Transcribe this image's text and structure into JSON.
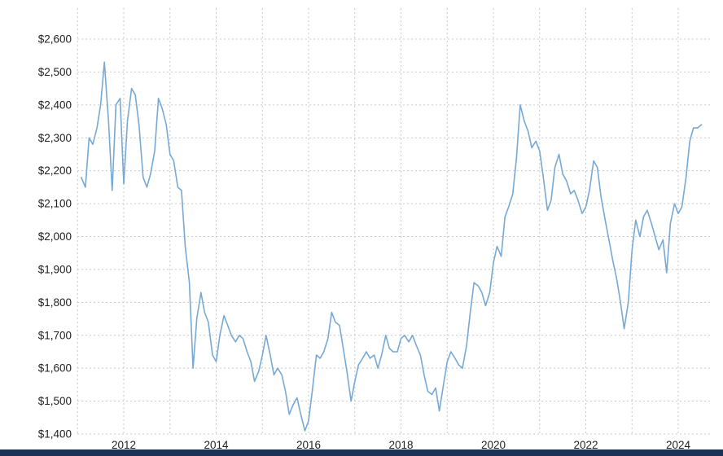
{
  "page": {
    "title": ""
  },
  "colors": {
    "line": "#77a9d4",
    "grid": "#c9c9c9",
    "axis_text": "#1f1f1f",
    "background": "#ffffff",
    "footer_bar": "#1c3254"
  },
  "chart_data": {
    "type": "line",
    "title": "",
    "xlabel": "",
    "ylabel": "",
    "legend": "none",
    "grid": true,
    "grid_style": "dashed",
    "xlim": [
      2011,
      2024.7
    ],
    "ylim": [
      1400,
      2650
    ],
    "y_ticks": [
      {
        "value": 2600,
        "label": "$2,600"
      },
      {
        "value": 2500,
        "label": "$2,500"
      },
      {
        "value": 2400,
        "label": "$2,400"
      },
      {
        "value": 2300,
        "label": "$2,300"
      },
      {
        "value": 2200,
        "label": "$2,200"
      },
      {
        "value": 2100,
        "label": "$2,100"
      },
      {
        "value": 2000,
        "label": "$2,000"
      },
      {
        "value": 1900,
        "label": "$1,900"
      },
      {
        "value": 1800,
        "label": "$1,800"
      },
      {
        "value": 1700,
        "label": "$1,700"
      },
      {
        "value": 1600,
        "label": "$1,600"
      },
      {
        "value": 1500,
        "label": "$1,500"
      },
      {
        "value": 1400,
        "label": "$1,400"
      }
    ],
    "x_ticks": [
      {
        "value": 2012,
        "label": "2012"
      },
      {
        "value": 2014,
        "label": "2014"
      },
      {
        "value": 2016,
        "label": "2016"
      },
      {
        "value": 2018,
        "label": "2018"
      },
      {
        "value": 2020,
        "label": "2020"
      },
      {
        "value": 2022,
        "label": "2022"
      },
      {
        "value": 2024,
        "label": "2024"
      }
    ],
    "x_gridlines": [
      2011,
      2012,
      2013,
      2014,
      2015,
      2016,
      2017,
      2018,
      2019,
      2020,
      2021,
      2022,
      2023,
      2024
    ],
    "points": [
      [
        2011.08,
        2180
      ],
      [
        2011.17,
        2150
      ],
      [
        2011.25,
        2300
      ],
      [
        2011.33,
        2280
      ],
      [
        2011.42,
        2330
      ],
      [
        2011.5,
        2400
      ],
      [
        2011.58,
        2530
      ],
      [
        2011.67,
        2350
      ],
      [
        2011.75,
        2140
      ],
      [
        2011.83,
        2400
      ],
      [
        2011.92,
        2420
      ],
      [
        2012.0,
        2160
      ],
      [
        2012.08,
        2350
      ],
      [
        2012.17,
        2450
      ],
      [
        2012.25,
        2430
      ],
      [
        2012.33,
        2340
      ],
      [
        2012.42,
        2180
      ],
      [
        2012.5,
        2150
      ],
      [
        2012.58,
        2190
      ],
      [
        2012.67,
        2260
      ],
      [
        2012.75,
        2420
      ],
      [
        2012.83,
        2390
      ],
      [
        2012.92,
        2340
      ],
      [
        2013.0,
        2250
      ],
      [
        2013.08,
        2230
      ],
      [
        2013.17,
        2150
      ],
      [
        2013.25,
        2140
      ],
      [
        2013.33,
        1970
      ],
      [
        2013.42,
        1860
      ],
      [
        2013.5,
        1600
      ],
      [
        2013.58,
        1750
      ],
      [
        2013.67,
        1830
      ],
      [
        2013.75,
        1770
      ],
      [
        2013.83,
        1740
      ],
      [
        2013.92,
        1640
      ],
      [
        2014.0,
        1620
      ],
      [
        2014.08,
        1700
      ],
      [
        2014.17,
        1760
      ],
      [
        2014.25,
        1730
      ],
      [
        2014.33,
        1700
      ],
      [
        2014.42,
        1680
      ],
      [
        2014.5,
        1700
      ],
      [
        2014.58,
        1690
      ],
      [
        2014.67,
        1650
      ],
      [
        2014.75,
        1620
      ],
      [
        2014.83,
        1560
      ],
      [
        2014.92,
        1590
      ],
      [
        2015.0,
        1640
      ],
      [
        2015.08,
        1700
      ],
      [
        2015.17,
        1640
      ],
      [
        2015.25,
        1580
      ],
      [
        2015.33,
        1600
      ],
      [
        2015.42,
        1580
      ],
      [
        2015.5,
        1530
      ],
      [
        2015.58,
        1460
      ],
      [
        2015.67,
        1490
      ],
      [
        2015.75,
        1510
      ],
      [
        2015.83,
        1460
      ],
      [
        2015.92,
        1410
      ],
      [
        2016.0,
        1440
      ],
      [
        2016.08,
        1530
      ],
      [
        2016.17,
        1640
      ],
      [
        2016.25,
        1630
      ],
      [
        2016.33,
        1650
      ],
      [
        2016.42,
        1690
      ],
      [
        2016.5,
        1770
      ],
      [
        2016.58,
        1740
      ],
      [
        2016.67,
        1730
      ],
      [
        2016.75,
        1660
      ],
      [
        2016.83,
        1590
      ],
      [
        2016.92,
        1500
      ],
      [
        2017.0,
        1560
      ],
      [
        2017.08,
        1610
      ],
      [
        2017.17,
        1630
      ],
      [
        2017.25,
        1650
      ],
      [
        2017.33,
        1630
      ],
      [
        2017.42,
        1640
      ],
      [
        2017.5,
        1600
      ],
      [
        2017.58,
        1640
      ],
      [
        2017.67,
        1700
      ],
      [
        2017.75,
        1660
      ],
      [
        2017.83,
        1650
      ],
      [
        2017.92,
        1650
      ],
      [
        2018.0,
        1690
      ],
      [
        2018.08,
        1700
      ],
      [
        2018.17,
        1680
      ],
      [
        2018.25,
        1700
      ],
      [
        2018.33,
        1670
      ],
      [
        2018.42,
        1640
      ],
      [
        2018.5,
        1580
      ],
      [
        2018.58,
        1530
      ],
      [
        2018.67,
        1520
      ],
      [
        2018.75,
        1540
      ],
      [
        2018.83,
        1470
      ],
      [
        2018.92,
        1550
      ],
      [
        2019.0,
        1620
      ],
      [
        2019.08,
        1650
      ],
      [
        2019.17,
        1630
      ],
      [
        2019.25,
        1610
      ],
      [
        2019.33,
        1600
      ],
      [
        2019.42,
        1670
      ],
      [
        2019.5,
        1770
      ],
      [
        2019.58,
        1860
      ],
      [
        2019.67,
        1850
      ],
      [
        2019.75,
        1830
      ],
      [
        2019.83,
        1790
      ],
      [
        2019.92,
        1830
      ],
      [
        2020.0,
        1920
      ],
      [
        2020.08,
        1970
      ],
      [
        2020.17,
        1940
      ],
      [
        2020.25,
        2060
      ],
      [
        2020.33,
        2090
      ],
      [
        2020.42,
        2130
      ],
      [
        2020.5,
        2240
      ],
      [
        2020.58,
        2400
      ],
      [
        2020.67,
        2350
      ],
      [
        2020.75,
        2320
      ],
      [
        2020.83,
        2270
      ],
      [
        2020.92,
        2290
      ],
      [
        2021.0,
        2260
      ],
      [
        2021.08,
        2180
      ],
      [
        2021.17,
        2080
      ],
      [
        2021.25,
        2110
      ],
      [
        2021.33,
        2210
      ],
      [
        2021.42,
        2250
      ],
      [
        2021.5,
        2190
      ],
      [
        2021.58,
        2170
      ],
      [
        2021.67,
        2130
      ],
      [
        2021.75,
        2140
      ],
      [
        2021.83,
        2110
      ],
      [
        2021.92,
        2070
      ],
      [
        2022.0,
        2090
      ],
      [
        2022.08,
        2140
      ],
      [
        2022.17,
        2230
      ],
      [
        2022.25,
        2210
      ],
      [
        2022.33,
        2120
      ],
      [
        2022.42,
        2050
      ],
      [
        2022.5,
        1990
      ],
      [
        2022.58,
        1930
      ],
      [
        2022.67,
        1870
      ],
      [
        2022.75,
        1800
      ],
      [
        2022.83,
        1720
      ],
      [
        2022.92,
        1800
      ],
      [
        2023.0,
        1960
      ],
      [
        2023.08,
        2050
      ],
      [
        2023.17,
        2000
      ],
      [
        2023.25,
        2060
      ],
      [
        2023.33,
        2080
      ],
      [
        2023.42,
        2040
      ],
      [
        2023.5,
        2000
      ],
      [
        2023.58,
        1960
      ],
      [
        2023.67,
        1990
      ],
      [
        2023.75,
        1890
      ],
      [
        2023.83,
        2040
      ],
      [
        2023.92,
        2100
      ],
      [
        2024.0,
        2070
      ],
      [
        2024.08,
        2090
      ],
      [
        2024.17,
        2180
      ],
      [
        2024.25,
        2290
      ],
      [
        2024.33,
        2330
      ],
      [
        2024.42,
        2330
      ],
      [
        2024.5,
        2340
      ]
    ]
  }
}
